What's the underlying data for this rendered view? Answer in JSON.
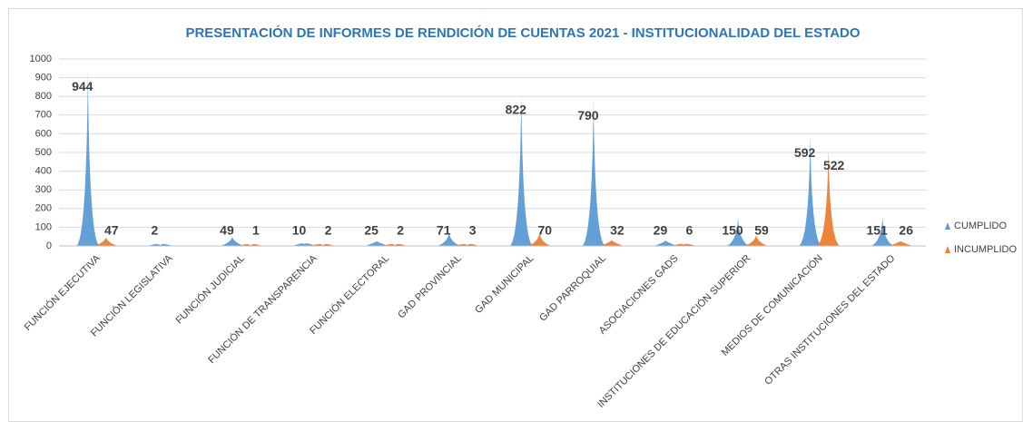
{
  "chart_data": {
    "type": "bar",
    "title": "PRESENTACIÓN DE INFORMES DE RENDICIÓN DE CUENTAS 2021 - INSTITUCIONALIDAD DEL ESTADO",
    "categories": [
      "FUNCIÓN EJECUTIVA",
      "FUNCIÓN LEGISLATIVA",
      "FUNCIÓN JUDICIAL",
      "FUNCIÓN DE TRANSPARENCIA",
      "FUNCIÓN ELECTORAL",
      "GAD PROVINCIAL",
      "GAD MUNICIPAL",
      "GAD PARROQUIAL",
      "ASOCIACIONES GADS",
      "INSTITUCIONES DE EDUCACIÓN SUPERIOR",
      "MEDIOS DE COMUNICACIÓN",
      "OTRAS INSTITUCIONES DEL ESTADO"
    ],
    "series": [
      {
        "name": "CUMPLIDO",
        "color": "#5b9bd5",
        "label_color": "#1f3864",
        "values": [
          944,
          2,
          49,
          10,
          25,
          71,
          822,
          790,
          29,
          150,
          592,
          151
        ]
      },
      {
        "name": "INCUMPLIDO",
        "color": "#ed7d31",
        "label_color": "#c00000",
        "values": [
          47,
          null,
          1,
          2,
          2,
          3,
          70,
          32,
          6,
          59,
          522,
          26
        ]
      }
    ],
    "ylim": [
      0,
      1000
    ],
    "yticks": [
      0,
      100,
      200,
      300,
      400,
      500,
      600,
      700,
      800,
      900,
      1000
    ],
    "grid": true,
    "legend": "right"
  }
}
